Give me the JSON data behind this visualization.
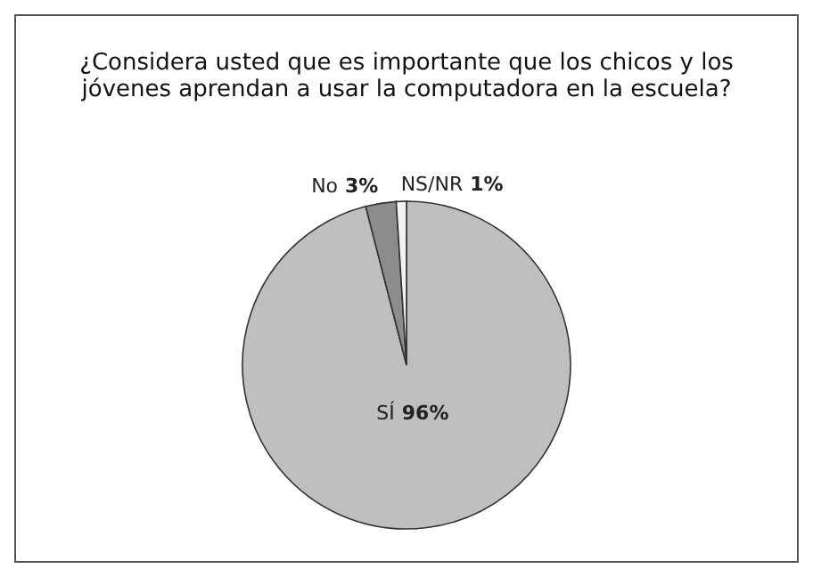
{
  "chart_data": {
    "type": "pie",
    "title": "¿Considera usted que es importante que los chicos y los jóvenes aprendan a usar la computadora en la escuela?",
    "categories": [
      "SÍ",
      "No",
      "NS/NR"
    ],
    "values": [
      96,
      3,
      1
    ],
    "colors": [
      "#bfbfbf",
      "#8c8c8c",
      "#f2f2f2"
    ],
    "value_labels": [
      "96%",
      "3%",
      "1%"
    ]
  }
}
